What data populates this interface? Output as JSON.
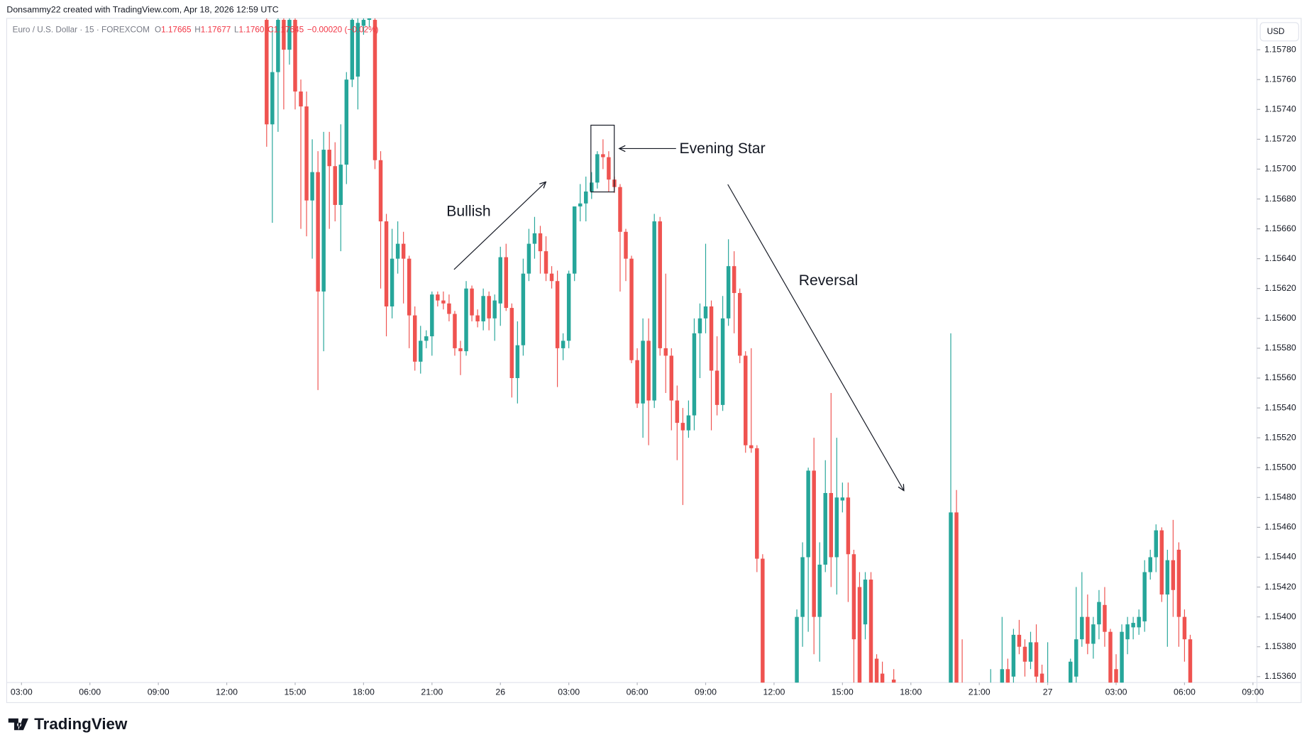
{
  "chart_data": {
    "type": "candlestick",
    "watermark": "Donsammy22 created with TradingView.com, Apr 18, 2026 12:59 UTC",
    "symbol": "Euro / U.S. Dollar · 15 · FOREXCOM",
    "ohlc_header": [
      "O",
      "1.17665",
      "H",
      "1.17677",
      "L",
      "1.1760",
      "C1.17645",
      "−0.00020 (−0.02%)"
    ],
    "currency": "USD",
    "brand": "TradingView",
    "annotations": [
      "Bullish",
      "Evening Star",
      "Reversal"
    ],
    "up_color": "#26a69a",
    "down_color": "#ef5350",
    "grid": false,
    "xlim": [
      -2.6,
      216.7
    ],
    "xticks": [
      {
        "value": 0,
        "label": "03:00"
      },
      {
        "value": 12,
        "label": "06:00"
      },
      {
        "value": 24,
        "label": "09:00"
      },
      {
        "value": 36,
        "label": "12:00"
      },
      {
        "value": 48,
        "label": "15:00"
      },
      {
        "value": 60,
        "label": "18:00"
      },
      {
        "value": 72,
        "label": "21:00"
      },
      {
        "value": 84,
        "label": "26"
      },
      {
        "value": 96,
        "label": "03:00"
      },
      {
        "value": 108,
        "label": "06:00"
      },
      {
        "value": 120,
        "label": "09:00"
      },
      {
        "value": 132,
        "label": "12:00"
      },
      {
        "value": 144,
        "label": "15:00"
      },
      {
        "value": 156,
        "label": "18:00"
      },
      {
        "value": 168,
        "label": "21:00"
      },
      {
        "value": 180,
        "label": "27"
      },
      {
        "value": 192,
        "label": "03:00"
      },
      {
        "value": 204,
        "label": "06:00"
      },
      {
        "value": 216,
        "label": "09:00"
      }
    ],
    "ylim": [
      1.15356,
      1.15801
    ],
    "yticks": [
      {
        "value": 1.1578,
        "label": "1.15780"
      },
      {
        "value": 1.1576,
        "label": "1.15760"
      },
      {
        "value": 1.1574,
        "label": "1.15740"
      },
      {
        "value": 1.1572,
        "label": "1.15720"
      },
      {
        "value": 1.157,
        "label": "1.15700"
      },
      {
        "value": 1.1568,
        "label": "1.15680"
      },
      {
        "value": 1.1566,
        "label": "1.15660"
      },
      {
        "value": 1.1564,
        "label": "1.15640"
      },
      {
        "value": 1.1562,
        "label": "1.15620"
      },
      {
        "value": 1.156,
        "label": "1.15600"
      },
      {
        "value": 1.1558,
        "label": "1.15580"
      },
      {
        "value": 1.1556,
        "label": "1.15560"
      },
      {
        "value": 1.1554,
        "label": "1.15540"
      },
      {
        "value": 1.1552,
        "label": "1.15520"
      },
      {
        "value": 1.155,
        "label": "1.15500"
      },
      {
        "value": 1.1548,
        "label": "1.15480"
      },
      {
        "value": 1.1546,
        "label": "1.15460"
      },
      {
        "value": 1.1544,
        "label": "1.15440"
      },
      {
        "value": 1.1542,
        "label": "1.15420"
      },
      {
        "value": 1.154,
        "label": "1.15400"
      },
      {
        "value": 1.1538,
        "label": "1.15380"
      },
      {
        "value": 1.1536,
        "label": "1.15360"
      }
    ],
    "x": [
      43,
      44,
      45,
      46,
      47,
      48,
      49,
      50,
      51,
      52,
      53,
      54,
      55,
      56,
      57,
      58,
      59,
      60,
      61,
      62,
      63,
      64,
      65,
      66,
      67,
      68,
      69,
      70,
      71,
      72,
      73,
      74,
      75,
      76,
      77,
      78,
      79,
      80,
      81,
      82,
      83,
      84,
      85,
      86,
      87,
      88,
      89,
      90,
      91,
      92,
      93,
      94,
      95,
      96,
      97,
      98,
      99,
      100,
      101,
      102,
      103,
      104,
      105,
      106,
      107,
      108,
      109,
      110,
      111,
      112,
      113,
      114,
      115,
      116,
      117,
      118,
      119,
      120,
      121,
      122,
      123,
      124,
      125,
      126,
      127,
      128,
      129,
      130,
      136,
      137,
      138,
      139,
      140,
      141,
      142,
      143,
      144,
      145,
      146,
      147,
      148,
      149,
      150,
      151,
      153,
      163,
      164,
      165,
      170,
      172,
      173,
      174,
      175,
      176,
      177,
      178,
      179,
      180,
      184,
      185,
      186,
      187,
      188,
      189,
      190,
      191,
      192,
      193,
      194,
      195,
      196,
      197,
      198,
      199,
      200,
      201,
      202,
      203,
      204,
      205
    ],
    "open": [
      1.158,
      1.1573,
      1.15765,
      1.158,
      1.1578,
      1.158,
      1.15752,
      1.15742,
      1.15679,
      1.15698,
      1.15618,
      1.15713,
      1.15702,
      1.15676,
      1.15703,
      1.1576,
      1.15762,
      1.15796,
      1.158,
      1.158,
      1.15706,
      1.15665,
      1.15608,
      1.1564,
      1.1565,
      1.1564,
      1.15602,
      1.15571,
      1.15585,
      1.15588,
      1.15616,
      1.15612,
      1.1561,
      1.15603,
      1.1558,
      1.15578,
      1.1562,
      1.15602,
      1.15598,
      1.15615,
      1.156,
      1.1561,
      1.15641,
      1.15607,
      1.1556,
      1.15582,
      1.1563,
      1.1565,
      1.15657,
      1.15645,
      1.1563,
      1.15625,
      1.1558,
      1.15585,
      1.1563,
      1.15675,
      1.15677,
      1.15685,
      1.15691,
      1.1571,
      1.15708,
      1.15693,
      1.15688,
      1.15658,
      1.1564,
      1.15572,
      1.15543,
      1.15585,
      1.15545,
      1.15665,
      1.1558,
      1.15575,
      1.15545,
      1.1553,
      1.15525,
      1.15535,
      1.1559,
      1.156,
      1.15608,
      1.15565,
      1.15542,
      1.156,
      1.15635,
      1.15617,
      1.15575,
      1.15515,
      1.15513,
      1.15439,
      1.15345,
      1.154,
      1.1544,
      1.15498,
      1.154,
      1.15435,
      1.15483,
      1.1544,
      1.15478,
      1.1548,
      1.15442,
      1.1542,
      1.15395,
      1.15425,
      1.15372,
      1.15362,
      1.15358,
      1.15345,
      1.1547,
      1.15352,
      1.1535,
      1.1535,
      1.15365,
      1.1536,
      1.15388,
      1.1538,
      1.1537,
      1.15383,
      1.15362,
      1.15345,
      1.15345,
      1.1536,
      1.15385,
      1.154,
      1.15382,
      1.15395,
      1.15408,
      1.1539,
      1.15365,
      1.1535,
      1.15385,
      1.15393,
      1.15393,
      1.15397,
      1.1543,
      1.1544,
      1.15458,
      1.15415,
      1.15438,
      1.15445,
      1.154,
      1.15385
    ],
    "high": [
      1.15812,
      1.15795,
      1.1581,
      1.1581,
      1.15808,
      1.15805,
      1.1576,
      1.15752,
      1.1572,
      1.15712,
      1.15725,
      1.15725,
      1.15718,
      1.1573,
      1.15765,
      1.1581,
      1.1581,
      1.15805,
      1.15805,
      1.1581,
      1.15712,
      1.1567,
      1.1566,
      1.15665,
      1.15658,
      1.15642,
      1.15608,
      1.15595,
      1.15592,
      1.15618,
      1.15618,
      1.15618,
      1.15616,
      1.15605,
      1.15585,
      1.15625,
      1.15622,
      1.15606,
      1.1562,
      1.15618,
      1.15616,
      1.15648,
      1.1565,
      1.1561,
      1.15598,
      1.1564,
      1.1566,
      1.15668,
      1.15662,
      1.15655,
      1.15635,
      1.15632,
      1.1559,
      1.15632,
      1.15675,
      1.1569,
      1.15695,
      1.15698,
      1.15712,
      1.1572,
      1.15712,
      1.15695,
      1.1569,
      1.1566,
      1.15642,
      1.1558,
      1.156,
      1.156,
      1.1567,
      1.15668,
      1.1563,
      1.1558,
      1.15555,
      1.1554,
      1.15545,
      1.156,
      1.1561,
      1.1565,
      1.15612,
      1.15588,
      1.15615,
      1.15653,
      1.15645,
      1.1562,
      1.15578,
      1.1558,
      1.15515,
      1.15442,
      1.15405,
      1.1545,
      1.155,
      1.1552,
      1.1545,
      1.15505,
      1.1555,
      1.1552,
      1.1549,
      1.1549,
      1.15445,
      1.1543,
      1.1543,
      1.1543,
      1.15375,
      1.1537,
      1.15365,
      1.1559,
      1.15485,
      1.15385,
      1.15365,
      1.154,
      1.15372,
      1.15392,
      1.15398,
      1.15385,
      1.1539,
      1.15395,
      1.15368,
      1.15383,
      1.15372,
      1.1542,
      1.1543,
      1.15415,
      1.154,
      1.15418,
      1.1542,
      1.15392,
      1.15375,
      1.15395,
      1.154,
      1.154,
      1.15405,
      1.15438,
      1.15445,
      1.15462,
      1.1546,
      1.15445,
      1.15465,
      1.1545,
      1.15405,
      1.15388
    ],
    "low": [
      1.15715,
      1.15664,
      1.15725,
      1.1574,
      1.1577,
      1.1574,
      1.1566,
      1.15655,
      1.1564,
      1.15552,
      1.15578,
      1.1566,
      1.15665,
      1.15645,
      1.1569,
      1.15755,
      1.1574,
      1.1579,
      1.15795,
      1.157,
      1.1562,
      1.15588,
      1.156,
      1.1563,
      1.1561,
      1.1558,
      1.15565,
      1.15563,
      1.1558,
      1.15575,
      1.15608,
      1.15606,
      1.15598,
      1.15575,
      1.15562,
      1.15575,
      1.15598,
      1.15594,
      1.15592,
      1.15592,
      1.15585,
      1.15595,
      1.15605,
      1.15547,
      1.15543,
      1.15575,
      1.15625,
      1.1564,
      1.1563,
      1.15625,
      1.1562,
      1.15554,
      1.15572,
      1.1558,
      1.15625,
      1.15665,
      1.15665,
      1.1568,
      1.15687,
      1.157,
      1.15685,
      1.15684,
      1.15618,
      1.15625,
      1.1557,
      1.1554,
      1.1552,
      1.15515,
      1.1554,
      1.15575,
      1.1555,
      1.15525,
      1.15505,
      1.15475,
      1.1552,
      1.15525,
      1.1556,
      1.1559,
      1.15525,
      1.15535,
      1.15538,
      1.15595,
      1.1559,
      1.1557,
      1.1551,
      1.1551,
      1.1543,
      1.1533,
      1.1534,
      1.1538,
      1.1539,
      1.15375,
      1.1537,
      1.1543,
      1.1542,
      1.15415,
      1.1547,
      1.1541,
      1.1535,
      1.1534,
      1.15385,
      1.1534,
      1.1534,
      1.15345,
      1.15345,
      1.1534,
      1.1534,
      1.1534,
      1.15345,
      1.15345,
      1.1535,
      1.15355,
      1.15375,
      1.1536,
      1.15365,
      1.1535,
      1.1534,
      1.1534,
      1.1534,
      1.15355,
      1.1538,
      1.15375,
      1.15372,
      1.15385,
      1.1538,
      1.15345,
      1.1534,
      1.15345,
      1.15375,
      1.15385,
      1.15388,
      1.1539,
      1.15425,
      1.1543,
      1.1541,
      1.1538,
      1.154,
      1.1538,
      1.1537,
      1.1534
    ],
    "close": [
      1.1573,
      1.15765,
      1.158,
      1.1578,
      1.158,
      1.15752,
      1.15742,
      1.15679,
      1.15698,
      1.15618,
      1.15713,
      1.15702,
      1.15676,
      1.15703,
      1.1576,
      1.158,
      1.15798,
      1.158,
      1.15801,
      1.15706,
      1.15665,
      1.15608,
      1.1564,
      1.1565,
      1.1564,
      1.15602,
      1.15571,
      1.15585,
      1.15588,
      1.15616,
      1.15612,
      1.1561,
      1.15603,
      1.1558,
      1.15578,
      1.1562,
      1.15602,
      1.15598,
      1.15615,
      1.156,
      1.15612,
      1.15641,
      1.15607,
      1.1556,
      1.15582,
      1.1563,
      1.1565,
      1.15657,
      1.15645,
      1.1563,
      1.15625,
      1.1558,
      1.15585,
      1.1563,
      1.15675,
      1.15677,
      1.15685,
      1.15691,
      1.1571,
      1.15708,
      1.15693,
      1.15688,
      1.15658,
      1.1564,
      1.15572,
      1.15543,
      1.15585,
      1.15545,
      1.15665,
      1.1558,
      1.15575,
      1.15545,
      1.1553,
      1.15525,
      1.15535,
      1.1559,
      1.156,
      1.15608,
      1.15565,
      1.15542,
      1.156,
      1.15635,
      1.15617,
      1.15575,
      1.15515,
      1.15513,
      1.15439,
      1.1534,
      1.154,
      1.1544,
      1.15498,
      1.154,
      1.15435,
      1.15483,
      1.1544,
      1.1548,
      1.1548,
      1.15442,
      1.15385,
      1.15345,
      1.15425,
      1.15345,
      1.1535,
      1.1535,
      1.15352,
      1.1547,
      1.15345,
      1.15345,
      1.15352,
      1.15365,
      1.15355,
      1.15388,
      1.1538,
      1.1537,
      1.15383,
      1.1536,
      1.15345,
      1.15352,
      1.1537,
      1.15385,
      1.154,
      1.15382,
      1.15395,
      1.1541,
      1.1539,
      1.1535,
      1.15345,
      1.1539,
      1.15395,
      1.15396,
      1.154,
      1.1543,
      1.1544,
      1.15458,
      1.15415,
      1.15438,
      1.15418,
      1.154,
      1.15385,
      1.15345
    ]
  }
}
